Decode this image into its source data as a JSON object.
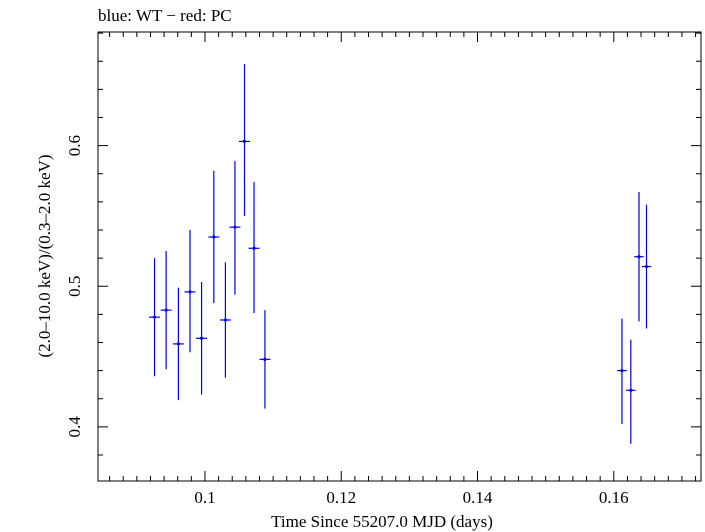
{
  "chart_data": {
    "type": "scatter",
    "title": "blue: WT − red: PC",
    "xlabel": "Time Since 55207.0 MJD (days)",
    "ylabel": "(2.0–10.0 keV)/(0.3–2.0 keV)",
    "xlim": [
      0.0843,
      0.1728
    ],
    "ylim": [
      0.3615,
      0.6808
    ],
    "x_ticks": [
      0.1,
      0.12,
      0.14,
      0.16
    ],
    "x_tick_labels": [
      "0.1",
      "0.12",
      "0.14",
      "0.16"
    ],
    "y_ticks": [
      0.4,
      0.5,
      0.6
    ],
    "y_tick_labels": [
      "0.4",
      "0.5",
      "0.6"
    ],
    "grid": false,
    "series": [
      {
        "color": "#0000dd",
        "points": [
          {
            "x": 0.0926,
            "y": 0.478,
            "xerr": 0.0008,
            "ylo": 0.436,
            "yhi": 0.52
          },
          {
            "x": 0.0943,
            "y": 0.483,
            "xerr": 0.0008,
            "ylo": 0.441,
            "yhi": 0.525
          },
          {
            "x": 0.0961,
            "y": 0.459,
            "xerr": 0.0008,
            "ylo": 0.419,
            "yhi": 0.499
          },
          {
            "x": 0.0978,
            "y": 0.496,
            "xerr": 0.0008,
            "ylo": 0.453,
            "yhi": 0.54
          },
          {
            "x": 0.0995,
            "y": 0.463,
            "xerr": 0.0008,
            "ylo": 0.423,
            "yhi": 0.503
          },
          {
            "x": 0.1013,
            "y": 0.535,
            "xerr": 0.0008,
            "ylo": 0.488,
            "yhi": 0.582
          },
          {
            "x": 0.103,
            "y": 0.476,
            "xerr": 0.0008,
            "ylo": 0.435,
            "yhi": 0.517
          },
          {
            "x": 0.1044,
            "y": 0.542,
            "xerr": 0.0008,
            "ylo": 0.494,
            "yhi": 0.589
          },
          {
            "x": 0.1058,
            "y": 0.603,
            "xerr": 0.0008,
            "ylo": 0.55,
            "yhi": 0.658
          },
          {
            "x": 0.1072,
            "y": 0.527,
            "xerr": 0.0008,
            "ylo": 0.481,
            "yhi": 0.574
          },
          {
            "x": 0.1088,
            "y": 0.448,
            "xerr": 0.0008,
            "ylo": 0.413,
            "yhi": 0.483
          },
          {
            "x": 0.1612,
            "y": 0.44,
            "xerr": 0.0007,
            "ylo": 0.402,
            "yhi": 0.477
          },
          {
            "x": 0.1625,
            "y": 0.426,
            "xerr": 0.0007,
            "ylo": 0.388,
            "yhi": 0.462
          },
          {
            "x": 0.1637,
            "y": 0.521,
            "xerr": 0.0007,
            "ylo": 0.475,
            "yhi": 0.567
          },
          {
            "x": 0.1648,
            "y": 0.514,
            "xerr": 0.0007,
            "ylo": 0.47,
            "yhi": 0.558
          }
        ]
      }
    ]
  }
}
